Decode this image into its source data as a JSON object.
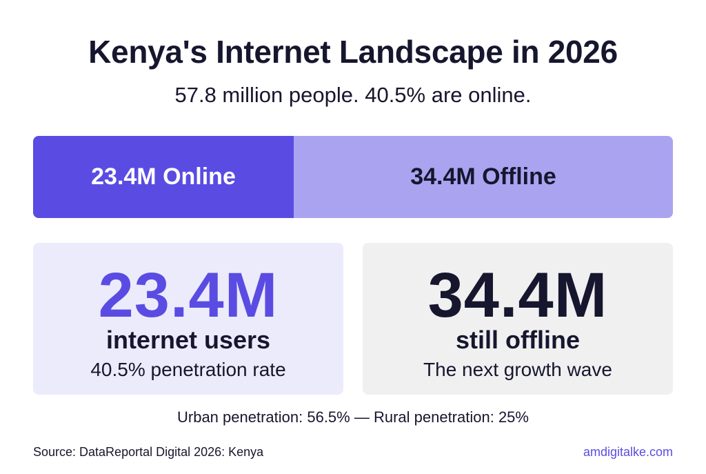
{
  "header": {
    "title": "Kenya's Internet Landscape in 2026",
    "subtitle": "57.8 million people. 40.5% are online."
  },
  "bar": {
    "online": "23.4M Online",
    "offline": "34.4M Offline"
  },
  "cards": [
    {
      "value": "23.4M",
      "label": "internet users",
      "note": "40.5% penetration rate"
    },
    {
      "value": "34.4M",
      "label": "still offline",
      "note": "The next growth wave"
    }
  ],
  "footnote": "Urban penetration: 56.5% — Rural penetration: 25%",
  "footer": {
    "source": "Source: DataReportal Digital 2026: Kenya",
    "brand": "amdigitalke.com"
  }
}
